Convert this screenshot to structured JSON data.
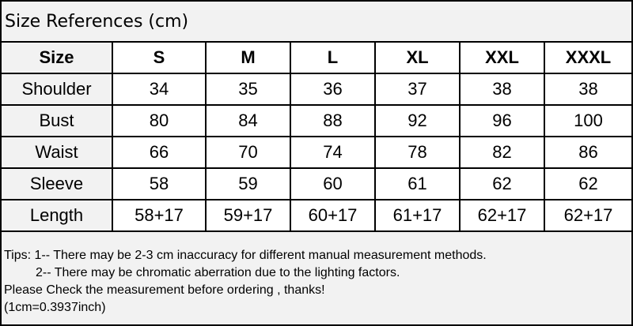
{
  "title": "Size References (cm)",
  "table": {
    "headers": [
      "Size",
      "S",
      "M",
      "L",
      "XL",
      "XXL",
      "XXXL"
    ],
    "rows": [
      [
        "Shoulder",
        "34",
        "35",
        "36",
        "37",
        "38",
        "38"
      ],
      [
        "Bust",
        "80",
        "84",
        "88",
        "92",
        "96",
        "100"
      ],
      [
        "Waist",
        "66",
        "70",
        "74",
        "78",
        "82",
        "86"
      ],
      [
        "Sleeve",
        "58",
        "59",
        "60",
        "61",
        "62",
        "62"
      ],
      [
        "Length",
        "58+17",
        "59+17",
        "60+17",
        "61+17",
        "62+17",
        "62+17"
      ]
    ]
  },
  "tips": [
    "Tips: 1-- There may be 2-3 cm inaccuracy for different manual measurement methods.",
    "         2-- There may be chromatic aberration due to the lighting factors.",
    "Please Check the measurement before ordering , thanks!",
    "(1cm=0.3937inch)"
  ]
}
